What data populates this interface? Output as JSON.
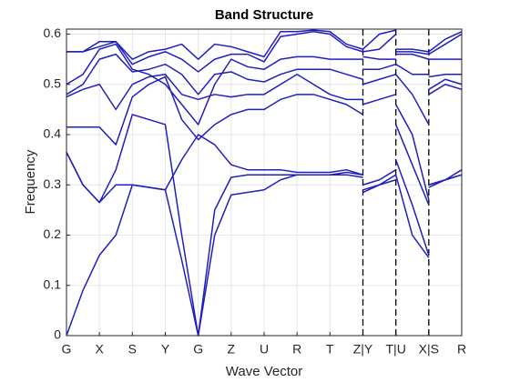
{
  "chart_data": {
    "type": "line",
    "title": "Band Structure",
    "x_label": "Wave Vector",
    "y_label": "Frequency",
    "color": "#1f1fbf",
    "grid": true,
    "vlines": [
      9,
      10,
      11
    ],
    "xlim": [
      0,
      12
    ],
    "ylim": [
      0,
      0.61
    ],
    "xticks": [
      {
        "value": 0,
        "label": "G"
      },
      {
        "value": 1,
        "label": "X"
      },
      {
        "value": 2,
        "label": "S"
      },
      {
        "value": 3,
        "label": "Y"
      },
      {
        "value": 4,
        "label": "G"
      },
      {
        "value": 5,
        "label": "Z"
      },
      {
        "value": 6,
        "label": "U"
      },
      {
        "value": 7,
        "label": "R"
      },
      {
        "value": 8,
        "label": "T"
      },
      {
        "value": 9,
        "label": "Z|Y"
      },
      {
        "value": 10,
        "label": "T|U"
      },
      {
        "value": 11,
        "label": "X|S"
      },
      {
        "value": 12,
        "label": "R"
      }
    ],
    "yticks": [
      0,
      0.1,
      0.2,
      0.3,
      0.4,
      0.5,
      0.6
    ],
    "x": [
      0,
      0.5,
      1,
      1.5,
      2,
      2.5,
      3,
      3.5,
      4,
      4.5,
      5,
      5.5,
      6,
      6.5,
      7,
      7.5,
      8,
      8.5,
      9,
      9,
      9,
      9.5,
      10,
      10,
      10,
      10.5,
      11,
      11,
      11,
      11.5,
      12
    ],
    "series": [
      {
        "values": [
          0,
          0.09,
          0.16,
          0.2,
          0.3,
          0.295,
          0.29,
          0.15,
          0,
          0.2,
          0.28,
          0.285,
          0.29,
          0.31,
          0.32,
          0.32,
          0.32,
          0.32,
          0.315,
          null,
          0.29,
          0.3,
          0.32,
          null,
          0.32,
          0.2,
          0.155,
          null,
          0.295,
          0.31,
          0.32
        ]
      },
      {
        "values": [
          0.365,
          0.3,
          0.265,
          0.33,
          0.44,
          0.43,
          0.42,
          0.2,
          0,
          0.25,
          0.315,
          0.32,
          0.32,
          0.32,
          0.32,
          0.32,
          0.32,
          0.325,
          0.32,
          null,
          0.285,
          0.3,
          0.31,
          null,
          0.35,
          0.26,
          0.16,
          null,
          0.3,
          0.31,
          0.32
        ]
      },
      {
        "values": [
          0.365,
          0.3,
          0.265,
          0.3,
          0.3,
          0.295,
          0.29,
          0.35,
          0.4,
          0.38,
          0.34,
          0.33,
          0.33,
          0.33,
          0.325,
          0.325,
          0.325,
          0.33,
          0.32,
          null,
          0.3,
          0.31,
          0.33,
          null,
          0.42,
          0.34,
          0.26,
          null,
          0.3,
          0.31,
          0.33
        ]
      },
      {
        "values": [
          0.415,
          0.415,
          0.415,
          0.38,
          0.475,
          0.5,
          0.515,
          0.43,
          0.39,
          0.42,
          0.44,
          0.45,
          0.45,
          0.47,
          0.48,
          0.48,
          0.47,
          0.46,
          0.44,
          null,
          0.46,
          0.47,
          0.48,
          null,
          0.46,
          0.4,
          0.27,
          null,
          0.48,
          0.5,
          0.49
        ]
      },
      {
        "values": [
          0.475,
          0.49,
          0.5,
          0.45,
          0.5,
          0.515,
          0.52,
          0.48,
          0.47,
          0.48,
          0.475,
          0.48,
          0.48,
          0.5,
          0.52,
          0.5,
          0.48,
          0.47,
          0.47,
          null,
          0.5,
          0.51,
          0.52,
          null,
          0.52,
          0.48,
          0.42,
          null,
          0.49,
          0.51,
          0.5
        ]
      },
      {
        "values": [
          0.48,
          0.5,
          0.55,
          0.56,
          0.525,
          0.53,
          0.54,
          0.52,
          0.48,
          0.52,
          0.525,
          0.51,
          0.505,
          0.52,
          0.53,
          0.53,
          0.53,
          0.52,
          0.51,
          null,
          0.53,
          0.53,
          0.54,
          null,
          0.54,
          0.52,
          0.52,
          null,
          0.515,
          0.52,
          0.52
        ]
      },
      {
        "values": [
          0.5,
          0.52,
          0.57,
          0.58,
          0.53,
          0.52,
          0.5,
          0.46,
          0.42,
          0.5,
          0.55,
          0.535,
          0.53,
          0.55,
          0.555,
          0.555,
          0.55,
          0.55,
          0.55,
          null,
          0.555,
          0.55,
          0.55,
          null,
          0.56,
          0.56,
          0.55,
          null,
          0.55,
          0.55,
          0.55
        ]
      },
      {
        "values": [
          0.565,
          0.565,
          0.575,
          0.585,
          0.54,
          0.555,
          0.565,
          0.55,
          0.525,
          0.55,
          0.56,
          0.56,
          0.545,
          0.595,
          0.6,
          0.605,
          0.6,
          0.575,
          0.565,
          null,
          0.565,
          0.57,
          0.6,
          null,
          0.565,
          0.565,
          0.56,
          null,
          0.56,
          0.58,
          0.6
        ]
      },
      {
        "values": [
          0.565,
          0.565,
          0.585,
          0.585,
          0.55,
          0.565,
          0.57,
          0.58,
          0.55,
          0.58,
          0.575,
          0.565,
          0.555,
          0.605,
          0.605,
          0.608,
          0.605,
          0.58,
          0.57,
          null,
          0.57,
          0.6,
          0.608,
          null,
          0.57,
          0.57,
          0.565,
          null,
          0.565,
          0.59,
          0.605
        ]
      }
    ]
  }
}
